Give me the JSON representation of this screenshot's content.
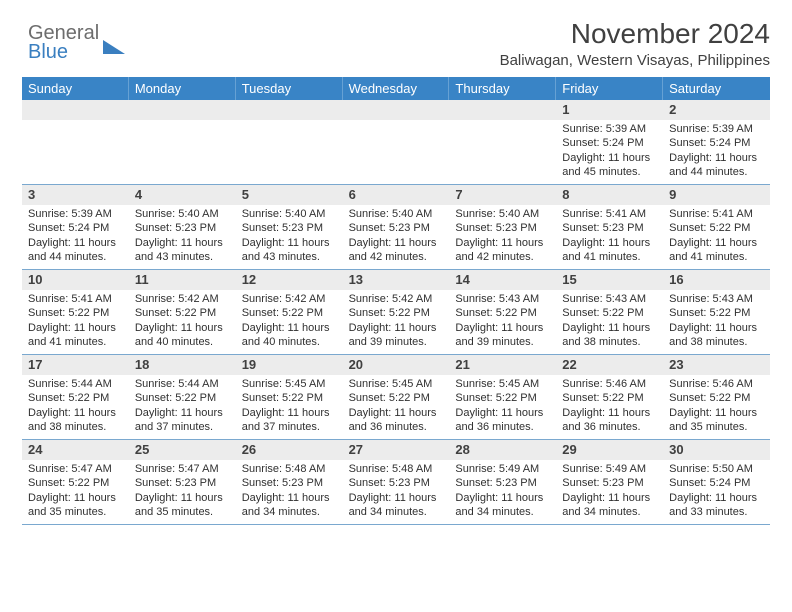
{
  "logo": {
    "top": "General",
    "bottom": "Blue"
  },
  "title": "November 2024",
  "subtitle": "Baliwagan, Western Visayas, Philippines",
  "colors": {
    "header_bg": "#3984c6",
    "header_text": "#ffffff",
    "daynum_bg": "#ececec",
    "rule": "#7aa8cf",
    "body_text": "#303030",
    "logo_blue": "#3a7fc0",
    "logo_grey": "#6d6d6d"
  },
  "weekdays": [
    "Sunday",
    "Monday",
    "Tuesday",
    "Wednesday",
    "Thursday",
    "Friday",
    "Saturday"
  ],
  "weeks": [
    [
      {
        "n": "",
        "sr": "",
        "ss": "",
        "dl": ""
      },
      {
        "n": "",
        "sr": "",
        "ss": "",
        "dl": ""
      },
      {
        "n": "",
        "sr": "",
        "ss": "",
        "dl": ""
      },
      {
        "n": "",
        "sr": "",
        "ss": "",
        "dl": ""
      },
      {
        "n": "",
        "sr": "",
        "ss": "",
        "dl": ""
      },
      {
        "n": "1",
        "sr": "Sunrise: 5:39 AM",
        "ss": "Sunset: 5:24 PM",
        "dl": "Daylight: 11 hours and 45 minutes."
      },
      {
        "n": "2",
        "sr": "Sunrise: 5:39 AM",
        "ss": "Sunset: 5:24 PM",
        "dl": "Daylight: 11 hours and 44 minutes."
      }
    ],
    [
      {
        "n": "3",
        "sr": "Sunrise: 5:39 AM",
        "ss": "Sunset: 5:24 PM",
        "dl": "Daylight: 11 hours and 44 minutes."
      },
      {
        "n": "4",
        "sr": "Sunrise: 5:40 AM",
        "ss": "Sunset: 5:23 PM",
        "dl": "Daylight: 11 hours and 43 minutes."
      },
      {
        "n": "5",
        "sr": "Sunrise: 5:40 AM",
        "ss": "Sunset: 5:23 PM",
        "dl": "Daylight: 11 hours and 43 minutes."
      },
      {
        "n": "6",
        "sr": "Sunrise: 5:40 AM",
        "ss": "Sunset: 5:23 PM",
        "dl": "Daylight: 11 hours and 42 minutes."
      },
      {
        "n": "7",
        "sr": "Sunrise: 5:40 AM",
        "ss": "Sunset: 5:23 PM",
        "dl": "Daylight: 11 hours and 42 minutes."
      },
      {
        "n": "8",
        "sr": "Sunrise: 5:41 AM",
        "ss": "Sunset: 5:23 PM",
        "dl": "Daylight: 11 hours and 41 minutes."
      },
      {
        "n": "9",
        "sr": "Sunrise: 5:41 AM",
        "ss": "Sunset: 5:22 PM",
        "dl": "Daylight: 11 hours and 41 minutes."
      }
    ],
    [
      {
        "n": "10",
        "sr": "Sunrise: 5:41 AM",
        "ss": "Sunset: 5:22 PM",
        "dl": "Daylight: 11 hours and 41 minutes."
      },
      {
        "n": "11",
        "sr": "Sunrise: 5:42 AM",
        "ss": "Sunset: 5:22 PM",
        "dl": "Daylight: 11 hours and 40 minutes."
      },
      {
        "n": "12",
        "sr": "Sunrise: 5:42 AM",
        "ss": "Sunset: 5:22 PM",
        "dl": "Daylight: 11 hours and 40 minutes."
      },
      {
        "n": "13",
        "sr": "Sunrise: 5:42 AM",
        "ss": "Sunset: 5:22 PM",
        "dl": "Daylight: 11 hours and 39 minutes."
      },
      {
        "n": "14",
        "sr": "Sunrise: 5:43 AM",
        "ss": "Sunset: 5:22 PM",
        "dl": "Daylight: 11 hours and 39 minutes."
      },
      {
        "n": "15",
        "sr": "Sunrise: 5:43 AM",
        "ss": "Sunset: 5:22 PM",
        "dl": "Daylight: 11 hours and 38 minutes."
      },
      {
        "n": "16",
        "sr": "Sunrise: 5:43 AM",
        "ss": "Sunset: 5:22 PM",
        "dl": "Daylight: 11 hours and 38 minutes."
      }
    ],
    [
      {
        "n": "17",
        "sr": "Sunrise: 5:44 AM",
        "ss": "Sunset: 5:22 PM",
        "dl": "Daylight: 11 hours and 38 minutes."
      },
      {
        "n": "18",
        "sr": "Sunrise: 5:44 AM",
        "ss": "Sunset: 5:22 PM",
        "dl": "Daylight: 11 hours and 37 minutes."
      },
      {
        "n": "19",
        "sr": "Sunrise: 5:45 AM",
        "ss": "Sunset: 5:22 PM",
        "dl": "Daylight: 11 hours and 37 minutes."
      },
      {
        "n": "20",
        "sr": "Sunrise: 5:45 AM",
        "ss": "Sunset: 5:22 PM",
        "dl": "Daylight: 11 hours and 36 minutes."
      },
      {
        "n": "21",
        "sr": "Sunrise: 5:45 AM",
        "ss": "Sunset: 5:22 PM",
        "dl": "Daylight: 11 hours and 36 minutes."
      },
      {
        "n": "22",
        "sr": "Sunrise: 5:46 AM",
        "ss": "Sunset: 5:22 PM",
        "dl": "Daylight: 11 hours and 36 minutes."
      },
      {
        "n": "23",
        "sr": "Sunrise: 5:46 AM",
        "ss": "Sunset: 5:22 PM",
        "dl": "Daylight: 11 hours and 35 minutes."
      }
    ],
    [
      {
        "n": "24",
        "sr": "Sunrise: 5:47 AM",
        "ss": "Sunset: 5:22 PM",
        "dl": "Daylight: 11 hours and 35 minutes."
      },
      {
        "n": "25",
        "sr": "Sunrise: 5:47 AM",
        "ss": "Sunset: 5:23 PM",
        "dl": "Daylight: 11 hours and 35 minutes."
      },
      {
        "n": "26",
        "sr": "Sunrise: 5:48 AM",
        "ss": "Sunset: 5:23 PM",
        "dl": "Daylight: 11 hours and 34 minutes."
      },
      {
        "n": "27",
        "sr": "Sunrise: 5:48 AM",
        "ss": "Sunset: 5:23 PM",
        "dl": "Daylight: 11 hours and 34 minutes."
      },
      {
        "n": "28",
        "sr": "Sunrise: 5:49 AM",
        "ss": "Sunset: 5:23 PM",
        "dl": "Daylight: 11 hours and 34 minutes."
      },
      {
        "n": "29",
        "sr": "Sunrise: 5:49 AM",
        "ss": "Sunset: 5:23 PM",
        "dl": "Daylight: 11 hours and 34 minutes."
      },
      {
        "n": "30",
        "sr": "Sunrise: 5:50 AM",
        "ss": "Sunset: 5:24 PM",
        "dl": "Daylight: 11 hours and 33 minutes."
      }
    ]
  ]
}
